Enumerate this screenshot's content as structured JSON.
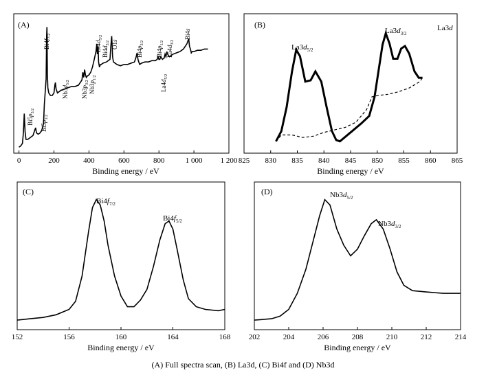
{
  "caption": "(A) Full spectra scan, (B) La3d, (C) Bi4f and (D) Nb3d",
  "chart_data": [
    {
      "panel_label": "(A)",
      "type": "line",
      "xlabel": "Binding energy / eV",
      "ylabel": "",
      "xlim": [
        -30,
        1200
      ],
      "ylim": [
        0,
        100
      ],
      "xticks": [
        0,
        200,
        400,
        600,
        800,
        1000,
        1200
      ],
      "xtick_labels": [
        "0",
        "200",
        "400",
        "600",
        "800",
        "1 000",
        "1 200"
      ],
      "series": [
        {
          "x": [
            0,
            10,
            20,
            25,
            30,
            35,
            40,
            50,
            60,
            70,
            80,
            90,
            95,
            100,
            110,
            120,
            130,
            140,
            145,
            150,
            155,
            158,
            160,
            162,
            165,
            170,
            180,
            190,
            200,
            205,
            208,
            212,
            220,
            240,
            260,
            280,
            300,
            320,
            340,
            360,
            365,
            370,
            375,
            380,
            385,
            390,
            400,
            410,
            420,
            430,
            440,
            445,
            448,
            452,
            455,
            460,
            465,
            470,
            480,
            500,
            520,
            525,
            530,
            535,
            540,
            560,
            580,
            600,
            620,
            640,
            660,
            670,
            675,
            680,
            685,
            690,
            700,
            720,
            740,
            760,
            780,
            790,
            795,
            800,
            805,
            810,
            820,
            830,
            835,
            840,
            845,
            850,
            855,
            860,
            870,
            880,
            900,
            920,
            940,
            960,
            970,
            975,
            980,
            985,
            990,
            1000,
            1020,
            1040,
            1060,
            1080
          ],
          "y": [
            2,
            3,
            5,
            13,
            28,
            14,
            8,
            8,
            9,
            10,
            11,
            15,
            17,
            13,
            12,
            13,
            15,
            20,
            35,
            45,
            55,
            88,
            95,
            60,
            48,
            44,
            42,
            42,
            44,
            50,
            52,
            47,
            44,
            46,
            47,
            48,
            49,
            49,
            50,
            54,
            60,
            56,
            62,
            58,
            56,
            57,
            58,
            60,
            64,
            70,
            76,
            82,
            74,
            80,
            68,
            64,
            66,
            66,
            67,
            68,
            70,
            80,
            88,
            72,
            68,
            66,
            65,
            66,
            66,
            67,
            68,
            72,
            75,
            70,
            68,
            66,
            67,
            68,
            68,
            69,
            69,
            70,
            72,
            70,
            70,
            72,
            70,
            71,
            74,
            72,
            76,
            74,
            73,
            72,
            73,
            74,
            75,
            76,
            78,
            82,
            86,
            80,
            78,
            75,
            76,
            76,
            77,
            77,
            78,
            78
          ]
        }
      ],
      "annotations": [
        "Bi5p3/2",
        "Bi5p1/2",
        "Bi4f7/2",
        "Nb3d5/2",
        "Nb3p3/2",
        "Nb3p1/2",
        "Bi4d5/2",
        "Bi4d3/2",
        "O1s",
        "Bi4p3/2",
        "Bi4p1/2",
        "La4d5/2",
        "La4d3/2",
        "Bi4s"
      ],
      "grid": false
    },
    {
      "panel_label": "(B)",
      "type": "line",
      "title": "La3d",
      "xlabel": "Binding energy / eV",
      "ylabel": "",
      "xlim": [
        825,
        865
      ],
      "ylim": [
        0,
        100
      ],
      "xticks": [
        825,
        830,
        835,
        840,
        845,
        850,
        855,
        860,
        865
      ],
      "series": [
        {
          "style": "solid",
          "x": [
            831,
            832,
            833,
            834,
            834.8,
            835.5,
            836.5,
            837.5,
            838.4,
            839.5,
            840.5,
            841.5,
            842.3,
            843,
            845,
            847,
            848.5,
            849.5,
            850.3,
            851,
            851.6,
            852.3,
            853,
            853.8,
            854.5,
            855.2,
            856,
            857,
            857.8,
            858.5
          ],
          "y": [
            5,
            13,
            32,
            60,
            77,
            72,
            52,
            53,
            60,
            52,
            32,
            13,
            6,
            5,
            12,
            19,
            25,
            40,
            62,
            81,
            90,
            82,
            70,
            70,
            78,
            80,
            74,
            60,
            55,
            55
          ]
        },
        {
          "style": "dashed",
          "x": [
            831,
            832,
            834,
            836,
            838,
            840,
            842,
            844,
            846,
            848,
            849,
            850,
            852,
            854,
            856,
            858,
            858.5
          ],
          "y": [
            5,
            10,
            10,
            8,
            9,
            12,
            14,
            16,
            20,
            30,
            40,
            41,
            42,
            44,
            47,
            52,
            55
          ]
        }
      ],
      "annotations": [
        "La3d5/2",
        "La3d3/2",
        "La3d"
      ],
      "grid": false
    },
    {
      "panel_label": "(C)",
      "type": "line",
      "xlabel": "Binding energy / eV",
      "ylabel": "",
      "xlim": [
        152,
        168
      ],
      "ylim": [
        0,
        100
      ],
      "xticks": [
        152,
        156,
        160,
        164,
        168
      ],
      "series": [
        {
          "x": [
            152,
            153,
            154,
            155,
            156,
            156.5,
            157,
            157.5,
            157.8,
            158.1,
            158.4,
            158.7,
            159,
            159.5,
            160,
            160.5,
            161,
            161.5,
            162,
            162.5,
            163,
            163.4,
            163.7,
            164,
            164.3,
            164.8,
            165.2,
            165.8,
            166.5,
            167.5,
            168
          ],
          "y": [
            2,
            3,
            4,
            6,
            10,
            16,
            35,
            68,
            86,
            92,
            88,
            76,
            58,
            35,
            20,
            12,
            12,
            17,
            25,
            42,
            62,
            74,
            76,
            70,
            56,
            32,
            18,
            12,
            10,
            9,
            10
          ]
        }
      ],
      "annotations": [
        "Bi4f7/2",
        "Bi4f5/2"
      ],
      "grid": false
    },
    {
      "panel_label": "(D)",
      "type": "line",
      "xlabel": "Binding energy / eV",
      "ylabel": "",
      "xlim": [
        202,
        214
      ],
      "ylim": [
        0,
        100
      ],
      "xticks": [
        202,
        204,
        206,
        208,
        210,
        212,
        214
      ],
      "series": [
        {
          "x": [
            202,
            203,
            203.5,
            204,
            204.5,
            205,
            205.5,
            205.8,
            206.1,
            206.4,
            206.8,
            207.2,
            207.6,
            208,
            208.4,
            208.8,
            209.1,
            209.5,
            209.9,
            210.3,
            210.7,
            211.2,
            212,
            213,
            214
          ],
          "y": [
            2,
            3,
            5,
            10,
            22,
            40,
            65,
            80,
            92,
            88,
            70,
            58,
            50,
            55,
            65,
            74,
            77,
            70,
            55,
            38,
            28,
            24,
            23,
            22,
            22
          ]
        }
      ],
      "annotations": [
        "Nb3d5/2",
        "Nb3d3/2"
      ],
      "grid": false
    }
  ]
}
